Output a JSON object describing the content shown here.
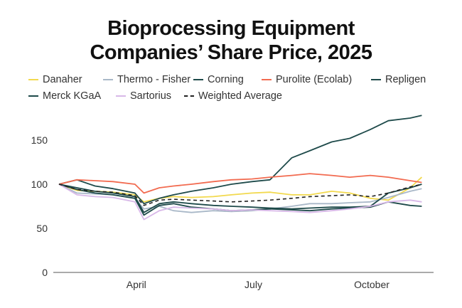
{
  "chart_data": {
    "type": "line",
    "title_lines": [
      "Bioprocessing Equipment",
      "Companies’ Share Price, 2025"
    ],
    "xlabel": "",
    "ylabel": "",
    "ylim": [
      0,
      180
    ],
    "yticks": [
      0,
      50,
      100,
      150
    ],
    "xticks": [
      {
        "label": "April",
        "date": "2025-04-01"
      },
      {
        "label": "July",
        "date": "2025-07-01"
      },
      {
        "label": "October",
        "date": "2025-10-01"
      }
    ],
    "grid": false,
    "legend_placement": "top",
    "x": [
      "2025-02-01",
      "2025-02-15",
      "2025-03-01",
      "2025-03-15",
      "2025-04-01",
      "2025-04-08",
      "2025-04-20",
      "2025-05-01",
      "2025-05-15",
      "2025-06-01",
      "2025-06-15",
      "2025-07-01",
      "2025-07-15",
      "2025-08-01",
      "2025-08-15",
      "2025-09-01",
      "2025-09-15",
      "2025-10-01",
      "2025-10-15",
      "2025-11-01",
      "2025-11-10"
    ],
    "series": [
      {
        "name": "Danaher",
        "color": "#f2d94e",
        "dash": false,
        "values": [
          100,
          93,
          92,
          91,
          88,
          80,
          84,
          86,
          85,
          86,
          88,
          90,
          91,
          88,
          88,
          92,
          90,
          84,
          82,
          96,
          108
        ]
      },
      {
        "name": "Thermo - Fisher",
        "color": "#a9b8c8",
        "dash": false,
        "values": [
          100,
          90,
          89,
          88,
          84,
          72,
          75,
          70,
          68,
          70,
          69,
          70,
          72,
          75,
          78,
          78,
          79,
          80,
          85,
          92,
          95
        ]
      },
      {
        "name": "Corning",
        "color": "#1e4a4a",
        "dash": false,
        "values": [
          100,
          105,
          98,
          95,
          90,
          78,
          84,
          88,
          92,
          96,
          100,
          103,
          105,
          130,
          138,
          148,
          152,
          162,
          172,
          175,
          178
        ]
      },
      {
        "name": "Purolite (Ecolab)",
        "color": "#f26b50",
        "dash": false,
        "values": [
          100,
          105,
          104,
          103,
          100,
          90,
          96,
          98,
          100,
          103,
          105,
          106,
          108,
          110,
          112,
          110,
          108,
          110,
          108,
          104,
          102
        ]
      },
      {
        "name": "Repligen",
        "color": "#1e4a4a",
        "dash": false,
        "values": [
          100,
          96,
          92,
          90,
          86,
          68,
          78,
          80,
          78,
          76,
          75,
          74,
          73,
          72,
          73,
          74,
          74,
          75,
          90,
          96,
          100
        ]
      },
      {
        "name": "Merck KGaA",
        "color": "#1e4a4a",
        "dash": false,
        "values": [
          100,
          94,
          90,
          88,
          84,
          65,
          76,
          78,
          74,
          72,
          70,
          71,
          72,
          71,
          70,
          72,
          73,
          74,
          80,
          76,
          75
        ]
      },
      {
        "name": "Sartorius",
        "color": "#d8b8e8",
        "dash": false,
        "values": [
          100,
          88,
          86,
          85,
          80,
          60,
          70,
          74,
          73,
          72,
          70,
          71,
          70,
          69,
          68,
          70,
          72,
          75,
          80,
          82,
          80
        ]
      },
      {
        "name": "Weighted Average",
        "color": "#222222",
        "dash": true,
        "values": [
          100,
          94,
          92,
          91,
          87,
          76,
          82,
          83,
          82,
          81,
          80,
          81,
          82,
          84,
          86,
          87,
          88,
          86,
          90,
          97,
          100
        ]
      }
    ]
  }
}
